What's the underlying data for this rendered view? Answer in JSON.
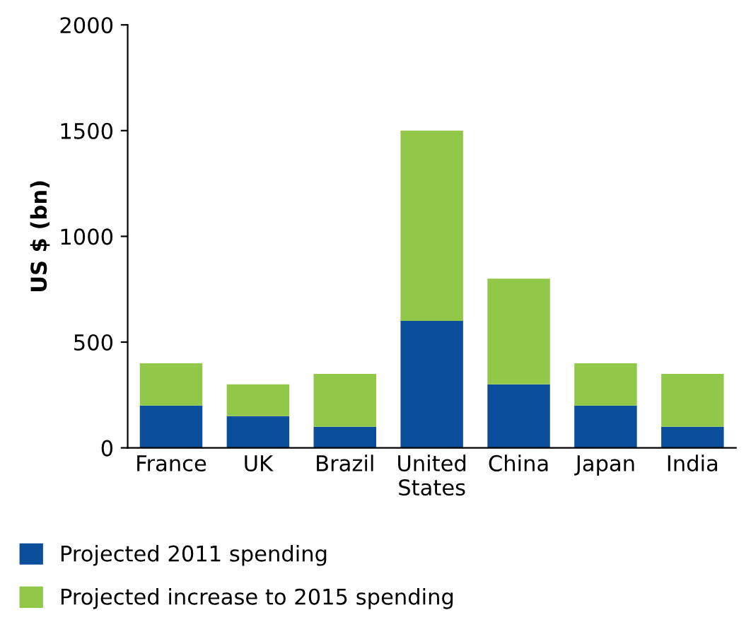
{
  "chart_data": {
    "type": "bar",
    "stacked": true,
    "ylabel": "US $ (bn)",
    "categories": [
      "France",
      "UK",
      "Brazil",
      "United\nStates",
      "China",
      "Japan",
      "India"
    ],
    "series": [
      {
        "name": "Projected 2011 spending",
        "color": "#0b4f9c",
        "values": [
          200,
          150,
          100,
          600,
          300,
          200,
          100
        ]
      },
      {
        "name": "Projected increase to 2015 spending",
        "color": "#92c84a",
        "values": [
          200,
          150,
          250,
          900,
          500,
          200,
          250
        ]
      }
    ],
    "ylim": [
      0,
      2000
    ],
    "yticks": [
      0,
      500,
      1000,
      1500,
      2000
    ],
    "legend": "bottom left"
  }
}
